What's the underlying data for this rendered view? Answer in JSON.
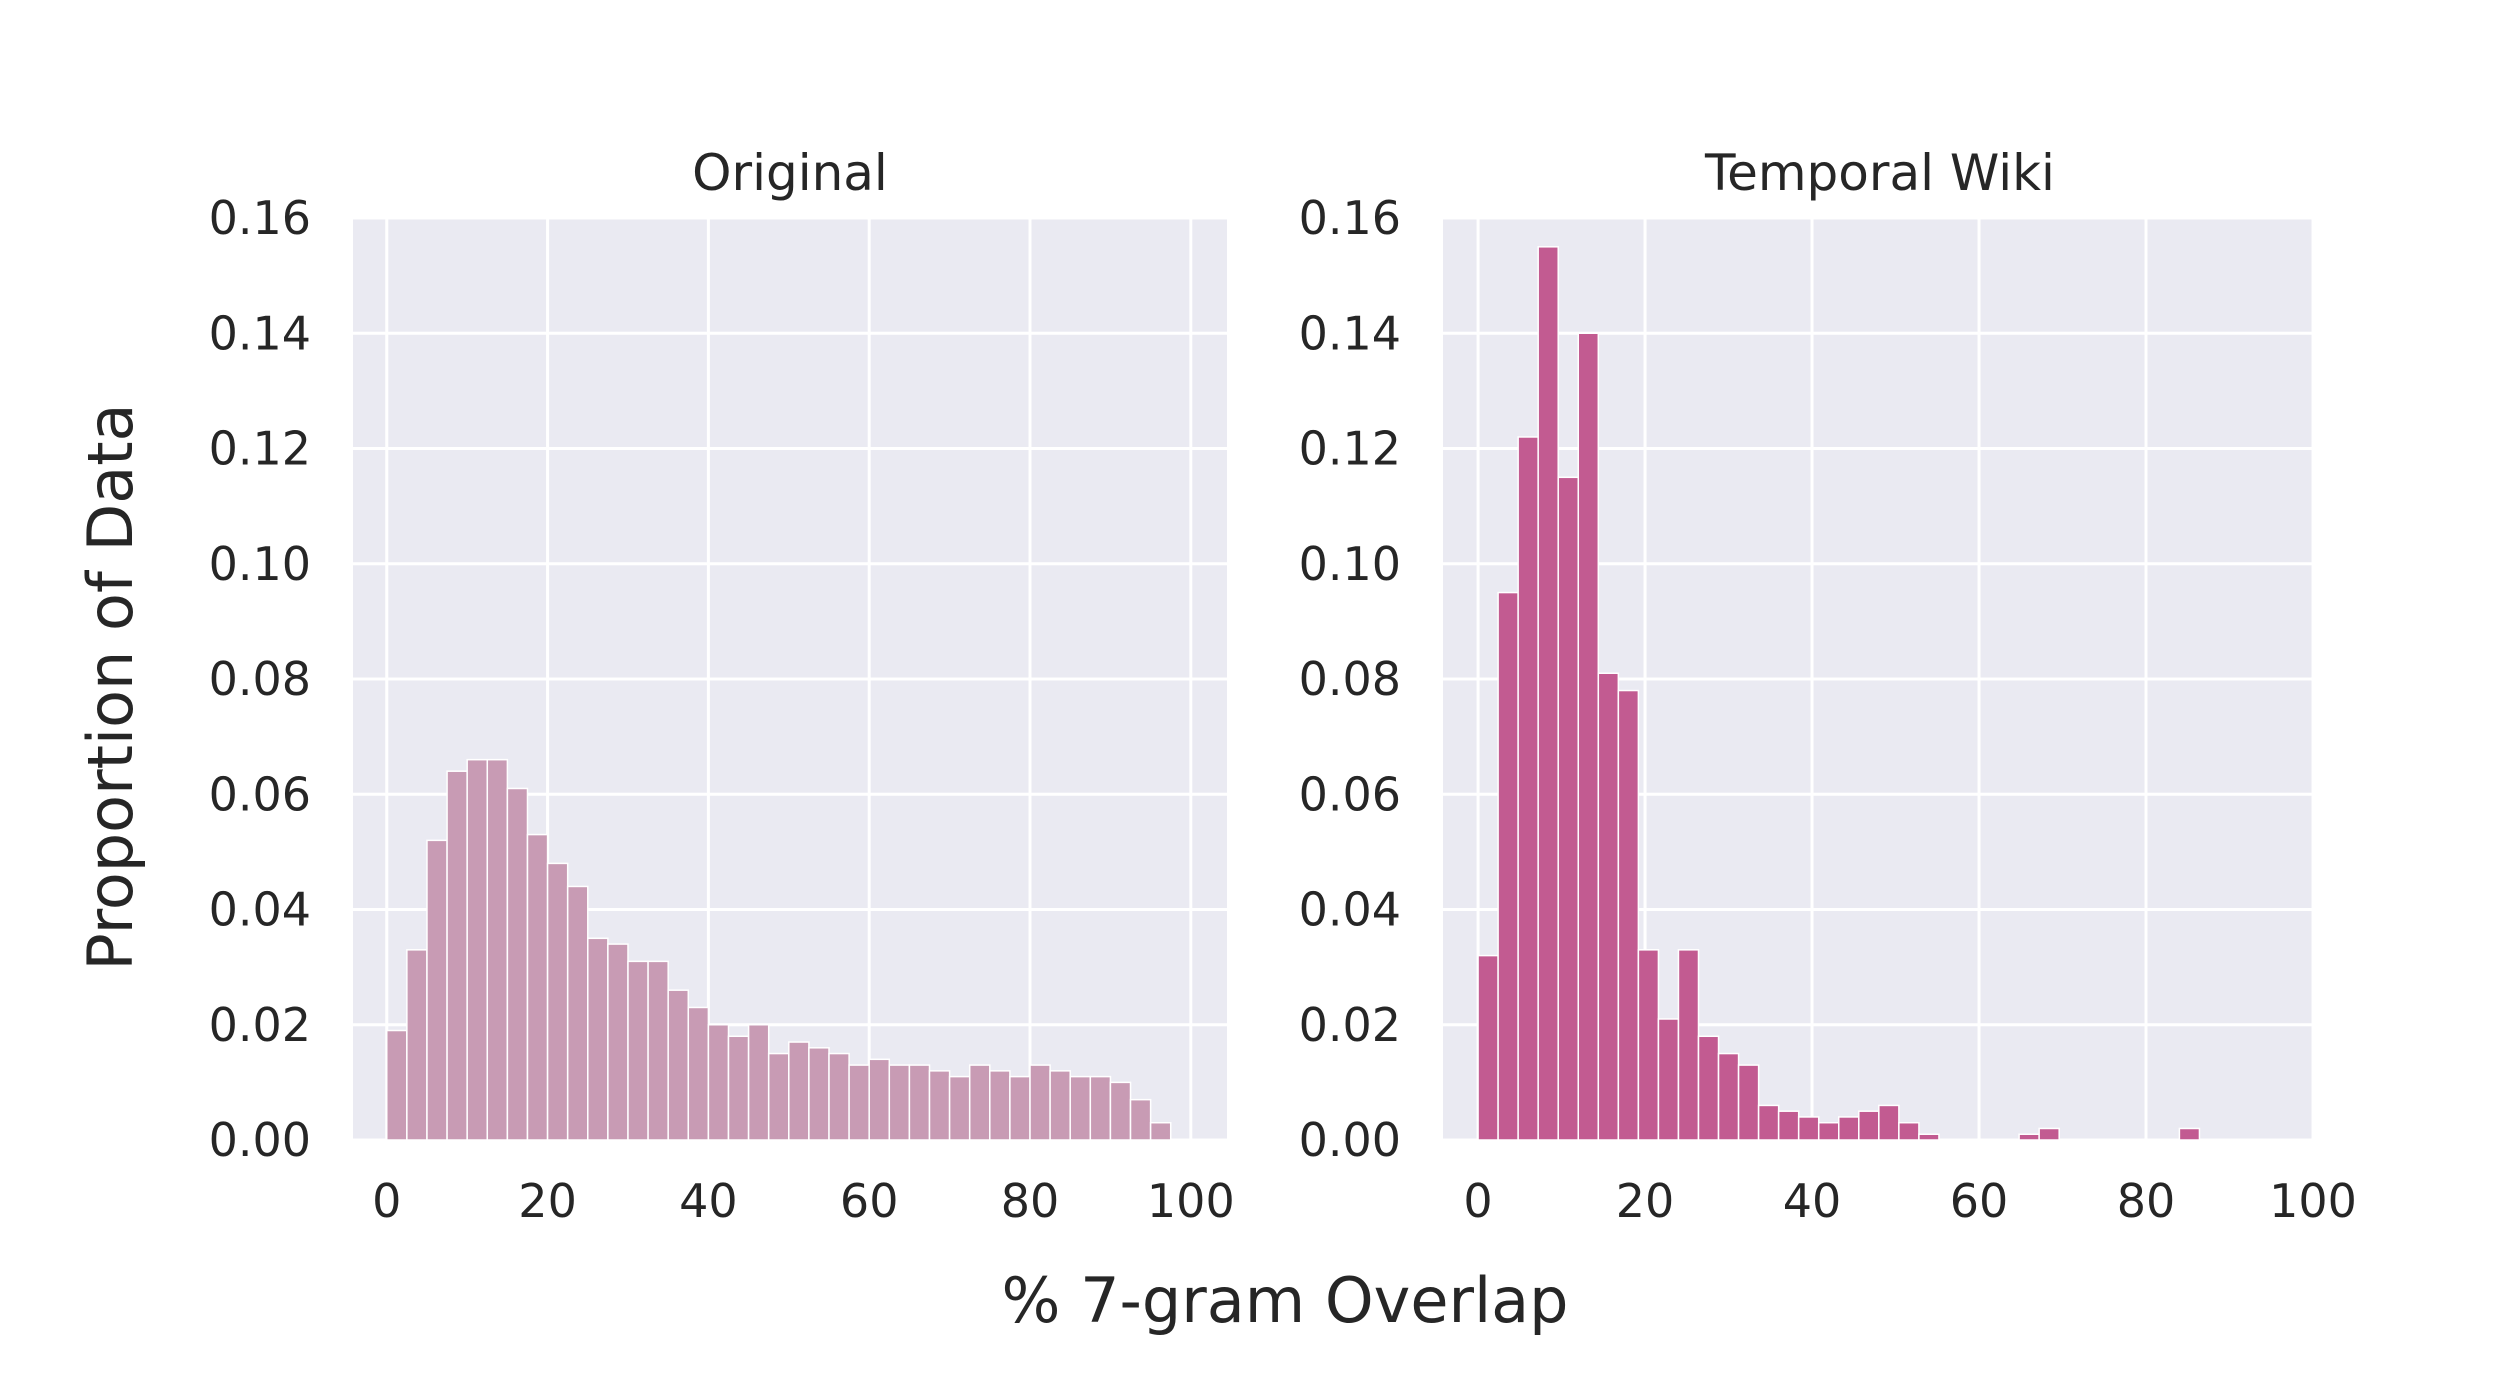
{
  "figure": {
    "xlabel": "% 7-gram Overlap",
    "ylabel": "Proportion of Data"
  },
  "chart_data": [
    {
      "type": "bar",
      "title": "Original",
      "xlabel": "% 7-gram Overlap",
      "ylabel": "Proportion of Data",
      "xlim": [
        -4.2,
        104.5
      ],
      "ylim": [
        0,
        0.16
      ],
      "xticks": [
        "0",
        "20",
        "40",
        "60",
        "80",
        "100"
      ],
      "yticks": [
        "0.00",
        "0.02",
        "0.04",
        "0.06",
        "0.08",
        "0.10",
        "0.12",
        "0.14",
        "0.16"
      ],
      "grid": true,
      "bin_width": 2.5,
      "bin_starts": [
        0,
        2.5,
        5,
        7.5,
        10,
        12.5,
        15,
        17.5,
        20,
        22.5,
        25,
        27.5,
        30,
        32.5,
        35,
        37.5,
        40,
        42.5,
        45,
        47.5,
        50,
        52.5,
        55,
        57.5,
        60,
        62.5,
        65,
        67.5,
        70,
        72.5,
        75,
        77.5,
        80,
        82.5,
        85,
        87.5,
        90,
        92.5,
        95
      ],
      "values": [
        0.019,
        0.033,
        0.052,
        0.064,
        0.066,
        0.066,
        0.061,
        0.053,
        0.048,
        0.044,
        0.035,
        0.034,
        0.031,
        0.031,
        0.026,
        0.023,
        0.02,
        0.018,
        0.02,
        0.015,
        0.017,
        0.016,
        0.015,
        0.013,
        0.014,
        0.013,
        0.013,
        0.012,
        0.011,
        0.013,
        0.012,
        0.011,
        0.013,
        0.012,
        0.011,
        0.011,
        0.01,
        0.007,
        0.003
      ],
      "color": "#c89bb4"
    },
    {
      "type": "bar",
      "title": "Temporal Wiki",
      "xlabel": "% 7-gram Overlap",
      "ylabel": "Proportion of Data",
      "xlim": [
        -4.2,
        100
      ],
      "ylim": [
        0,
        0.16
      ],
      "xticks": [
        "0",
        "20",
        "40",
        "60",
        "80",
        "100"
      ],
      "yticks": [
        "0.00",
        "0.02",
        "0.04",
        "0.06",
        "0.08",
        "0.10",
        "0.12",
        "0.14",
        "0.16"
      ],
      "grid": true,
      "bin_width": 2.4,
      "bin_starts": [
        0,
        2.4,
        4.8,
        7.2,
        9.6,
        12.0,
        14.4,
        16.8,
        19.2,
        21.6,
        24.0,
        26.4,
        28.8,
        31.2,
        33.6,
        36.0,
        38.4,
        40.8,
        43.2,
        45.6,
        48.0,
        50.4,
        52.8,
        55.2,
        57.6,
        60.0,
        62.4,
        64.8,
        67.2,
        69.6,
        72.0,
        74.4,
        76.8,
        79.2,
        81.6,
        84.0,
        86.4,
        88.8,
        91.2,
        93.6
      ],
      "values": [
        0.032,
        0.095,
        0.122,
        0.155,
        0.115,
        0.14,
        0.081,
        0.078,
        0.033,
        0.021,
        0.033,
        0.018,
        0.015,
        0.013,
        0.006,
        0.005,
        0.004,
        0.003,
        0.004,
        0.005,
        0.006,
        0.003,
        0.001,
        0.0,
        0.0,
        0.0,
        0.0,
        0.001,
        0.002,
        0.0,
        0.0,
        0.0,
        0.0,
        0.0,
        0.0,
        0.002,
        0.0,
        0.0,
        0.0,
        0.0
      ],
      "color": "#c25b91"
    }
  ]
}
